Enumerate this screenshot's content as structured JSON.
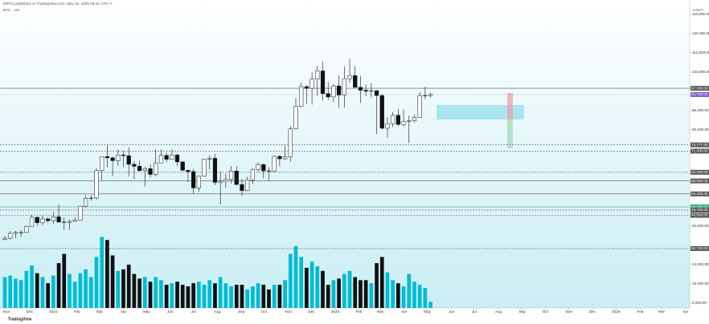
{
  "header": {
    "author": "NRFG published on TradingView.com, May 05, 2025 09:44 UTC+7",
    "symbol": "BTC · 1W",
    "currency": "USDT",
    "brand": "TradingView"
  },
  "chart_data": {
    "type": "candlestick",
    "x": [
      0,
      1,
      2,
      3,
      4,
      5,
      6,
      7,
      8,
      9,
      10,
      11,
      12,
      13,
      14,
      15,
      16,
      17,
      18,
      19,
      20,
      21,
      22,
      23,
      24,
      25,
      26,
      27,
      28,
      29,
      30,
      31,
      32,
      33,
      34,
      35,
      36,
      37,
      38,
      39,
      40,
      41,
      42,
      43,
      44,
      45,
      46,
      47,
      48,
      49,
      50,
      51,
      52,
      53,
      54,
      55,
      56,
      57,
      58,
      59,
      60,
      61,
      62,
      63,
      64,
      65,
      66,
      67,
      68,
      69,
      70,
      71,
      72,
      73,
      74,
      75,
      76,
      77,
      78,
      79
    ],
    "open": [
      34500,
      35000,
      37000,
      37400,
      37400,
      39900,
      43700,
      41400,
      43000,
      42300,
      43900,
      41700,
      41600,
      42000,
      42500,
      48300,
      51600,
      51700,
      63100,
      68900,
      68400,
      67200,
      69600,
      69300,
      65700,
      64900,
      63100,
      63900,
      61500,
      66300,
      69400,
      67800,
      69600,
      66700,
      63200,
      62700,
      55900,
      60800,
      67900,
      68200,
      58200,
      58700,
      59400,
      62900,
      57300,
      54800,
      59200,
      63600,
      65600,
      63000,
      62900,
      69000,
      68000,
      68800,
      80400,
      89800,
      98000,
      97300,
      101100,
      104500,
      95100,
      93700,
      98300,
      94500,
      101300,
      102600,
      97700,
      96500,
      96100,
      96300,
      94300,
      80700,
      82600,
      86100,
      82300,
      83500,
      83800,
      85200,
      94300,
      94300
    ],
    "high": [
      35900,
      38000,
      38000,
      38400,
      40200,
      44700,
      43700,
      44400,
      43800,
      45900,
      48900,
      43600,
      42800,
      43800,
      48500,
      52800,
      52900,
      64000,
      69000,
      73800,
      68900,
      71700,
      71300,
      72800,
      66900,
      67200,
      64700,
      65500,
      71900,
      71900,
      70600,
      71900,
      70200,
      67000,
      63400,
      63800,
      61000,
      68000,
      69400,
      70000,
      62700,
      61800,
      65000,
      64900,
      59800,
      60600,
      64100,
      66500,
      66000,
      64500,
      69400,
      69500,
      73600,
      81500,
      93300,
      99600,
      98600,
      104000,
      106600,
      108400,
      99900,
      99000,
      102700,
      106400,
      109600,
      106500,
      102500,
      98900,
      99500,
      96500,
      95000,
      85300,
      87500,
      88800,
      88500,
      85800,
      86400,
      95800,
      97900,
      95500
    ],
    "low": [
      34100,
      34500,
      35000,
      35600,
      37200,
      39900,
      40200,
      40500,
      41400,
      40800,
      41500,
      38500,
      38500,
      41800,
      42300,
      47800,
      50600,
      50900,
      59000,
      64500,
      60800,
      65000,
      64500,
      60700,
      59600,
      62800,
      56500,
      60200,
      60700,
      66200,
      66600,
      67700,
      65000,
      63200,
      58400,
      53500,
      54300,
      60600,
      63500,
      57100,
      49000,
      56100,
      57800,
      57200,
      52600,
      54600,
      57500,
      62700,
      59900,
      58900,
      62600,
      65000,
      67500,
      66800,
      80200,
      89400,
      90800,
      90500,
      94200,
      92200,
      92500,
      91500,
      89300,
      89300,
      99500,
      97700,
      91200,
      94100,
      93400,
      78200,
      80100,
      76600,
      81200,
      81600,
      81200,
      74500,
      83000,
      85000,
      92800,
      93400
    ],
    "close": [
      35000,
      37000,
      37400,
      37400,
      39900,
      43700,
      41400,
      43000,
      42300,
      43900,
      41700,
      41600,
      42000,
      42500,
      48300,
      51600,
      51700,
      63100,
      68900,
      68400,
      67200,
      69600,
      69300,
      65700,
      64900,
      63100,
      63900,
      61500,
      66300,
      69400,
      67800,
      69600,
      66700,
      63200,
      62700,
      55900,
      60800,
      67900,
      68200,
      58200,
      58700,
      59400,
      62900,
      57300,
      54800,
      59200,
      63600,
      65600,
      63000,
      62900,
      69000,
      68000,
      68800,
      80400,
      89800,
      98000,
      97300,
      101100,
      104500,
      95100,
      93700,
      98300,
      94500,
      101300,
      102600,
      97700,
      96500,
      96100,
      96300,
      94300,
      80700,
      82600,
      86100,
      82300,
      83500,
      83800,
      85200,
      94300,
      94300,
      94700
    ],
    "volume": [
      40,
      42,
      38,
      36,
      48,
      55,
      45,
      40,
      32,
      42,
      58,
      70,
      44,
      34,
      45,
      50,
      40,
      66,
      92,
      88,
      68,
      48,
      50,
      56,
      44,
      38,
      40,
      34,
      40,
      36,
      30,
      32,
      34,
      30,
      28,
      32,
      34,
      30,
      36,
      32,
      40,
      32,
      28,
      30,
      30,
      24,
      28,
      32,
      30,
      24,
      30,
      30,
      36,
      70,
      80,
      66,
      52,
      60,
      54,
      48,
      30,
      36,
      38,
      44,
      48,
      40,
      36,
      36,
      32,
      58,
      66,
      46,
      36,
      32,
      28,
      44,
      34,
      30,
      26,
      8
    ],
    "up_color": "#00bcd4",
    "down_color": "#111111",
    "xlim": [
      -0.9,
      127.1
    ],
    "xticks": [
      {
        "value": 0.3,
        "label": "Nov"
      },
      {
        "value": 4.6,
        "label": "Dec"
      },
      {
        "value": 9.0,
        "label": "2024"
      },
      {
        "value": 13.4,
        "label": "Feb"
      },
      {
        "value": 17.6,
        "label": "Mar"
      },
      {
        "value": 22.0,
        "label": "Apr"
      },
      {
        "value": 26.3,
        "label": "May"
      },
      {
        "value": 30.7,
        "label": "Jun"
      },
      {
        "value": 35.0,
        "label": "Jul"
      },
      {
        "value": 39.4,
        "label": "Aug"
      },
      {
        "value": 43.9,
        "label": "Sep"
      },
      {
        "value": 48.1,
        "label": "Oct"
      },
      {
        "value": 52.6,
        "label": "Nov"
      },
      {
        "value": 56.9,
        "label": "Dec"
      },
      {
        "value": 61.3,
        "label": "2025"
      },
      {
        "value": 65.7,
        "label": "Feb"
      },
      {
        "value": 69.7,
        "label": "Mar"
      },
      {
        "value": 74.1,
        "label": "Apr"
      },
      {
        "value": 78.4,
        "label": "May"
      },
      {
        "value": 82.9,
        "label": "Jun"
      },
      {
        "value": 87.1,
        "label": "Jul"
      },
      {
        "value": 91.6,
        "label": "Aug"
      },
      {
        "value": 96.0,
        "label": "Sep"
      },
      {
        "value": 100.3,
        "label": "Oct"
      },
      {
        "value": 104.7,
        "label": "Nov"
      },
      {
        "value": 109.0,
        "label": "Dec"
      },
      {
        "value": 113.4,
        "label": "2026"
      },
      {
        "value": 117.9,
        "label": "Feb"
      },
      {
        "value": 121.9,
        "label": "Mar"
      },
      {
        "value": 126.3,
        "label": "Apr"
      }
    ],
    "ylim": [
      6000,
      128000
    ],
    "yticks": [
      {
        "value": 128000,
        "label": "128,000.00"
      },
      {
        "value": 120000,
        "label": "120,000.00"
      },
      {
        "value": 112000,
        "label": "112,000.00"
      },
      {
        "value": 104000,
        "label": "104,000.00"
      },
      {
        "value": 88000,
        "label": "88,000.00"
      },
      {
        "value": 80000,
        "label": "80,000.00"
      },
      {
        "value": 40000,
        "label": "40,000.00"
      },
      {
        "value": 24000,
        "label": "24,000.00"
      },
      {
        "value": 16000,
        "label": "16,000.00"
      },
      {
        "value": 8000,
        "label": "8,000.00"
      }
    ],
    "y2lim": [
      0,
      380
    ],
    "levels": [
      {
        "value": 97300,
        "label": "97,300.00",
        "color": "#555555",
        "dash": false
      },
      {
        "value": 73777,
        "label": "73,777.00",
        "color": "#555555",
        "dash": true
      },
      {
        "value": 71200,
        "label": "71,200.00",
        "color": "#555555",
        "dash": true
      },
      {
        "value": 62400,
        "label": "62,400.00",
        "color": "#555555",
        "dash": true
      },
      {
        "value": 58800,
        "label": "58,800.00",
        "color": "#555555",
        "dash": false
      },
      {
        "value": 53400,
        "label": "53,400.00",
        "color": "#555555",
        "dash": false
      },
      {
        "value": 48000,
        "label": "48,000.00",
        "color": "#1aa37a",
        "dash": false
      },
      {
        "value": 46700,
        "label": "46,700.00",
        "color": "#555555",
        "dash": true
      },
      {
        "value": 44500,
        "label": "44,500.00",
        "color": "#555555",
        "dash": true
      },
      {
        "value": 30700,
        "label": "30,700.00",
        "color": "#555555",
        "dash": true
      }
    ],
    "last_price": {
      "value": 94700,
      "label": "94,700.00",
      "color": "#7e57c2"
    }
  }
}
